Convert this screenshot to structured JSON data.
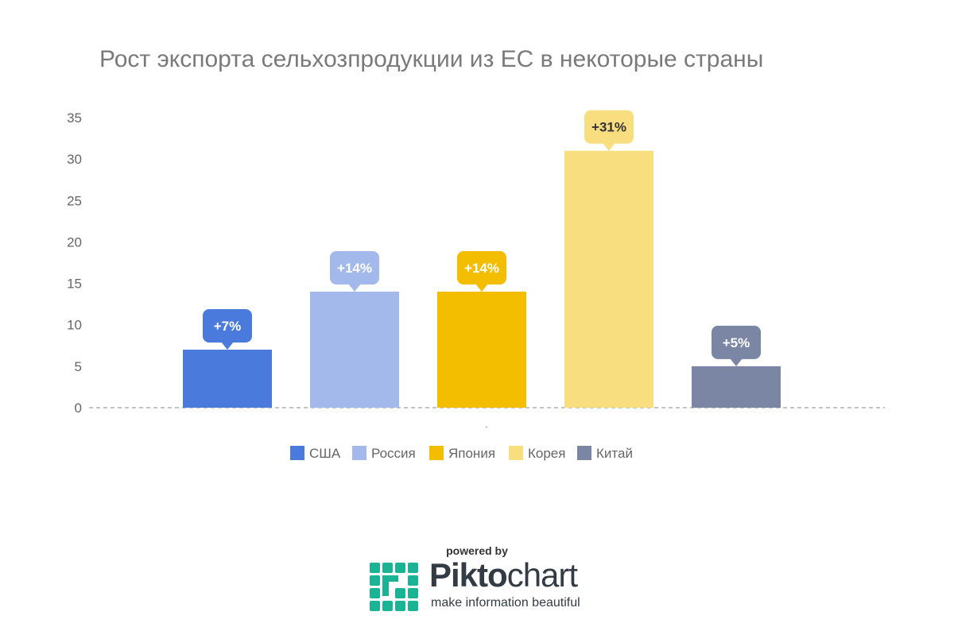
{
  "chart_data": {
    "type": "bar",
    "title": "Рост экспорта сельхозпродукции из ЕС в некоторые страны",
    "ylim": [
      0,
      35
    ],
    "yticks": [
      0,
      5,
      10,
      15,
      20,
      25,
      30,
      35
    ],
    "grid": false,
    "legend_position": "bottom",
    "x_tick": ".",
    "series": [
      {
        "name": "США",
        "value": 7,
        "label": "+7%",
        "color": "#4a7bdc",
        "label_color": "#ffffff"
      },
      {
        "name": "Россия",
        "value": 14,
        "label": "+14%",
        "color": "#a3b9ec",
        "label_color": "#ffffff"
      },
      {
        "name": "Япония",
        "value": 14,
        "label": "+14%",
        "color": "#f3bd00",
        "label_color": "#ffffff"
      },
      {
        "name": "Корея",
        "value": 31,
        "label": "+31%",
        "color": "#f8de7e",
        "label_color": "#333333"
      },
      {
        "name": "Китай",
        "value": 5,
        "label": "+5%",
        "color": "#7a86a4",
        "label_color": "#ffffff"
      }
    ]
  },
  "footer": {
    "powered_by": "powered by",
    "brand_bold": "Pikto",
    "brand_light": "chart",
    "tagline": "make information beautiful",
    "brand_color": "#1ab394"
  }
}
